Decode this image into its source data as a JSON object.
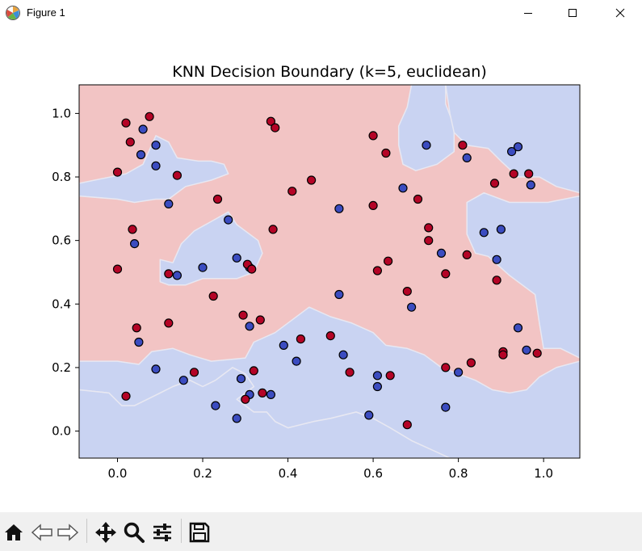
{
  "window": {
    "title": "Figure 1",
    "icons": [
      "app-figure-icon",
      "minimize-icon",
      "maximize-icon",
      "close-icon"
    ]
  },
  "toolbar": {
    "icons": [
      "home-icon",
      "back-arrow-icon",
      "forward-arrow-icon",
      "pan-move-icon",
      "zoom-magnifier-icon",
      "configure-subplots-icon",
      "save-floppy-icon"
    ]
  },
  "colors": {
    "class0_point": "#3b4cc0",
    "class1_point": "#b40426",
    "class0_region": "#c9d3f2",
    "class1_region": "#f2c4c4",
    "region_edge": "#e8e8f2"
  },
  "chart_data": {
    "type": "scatter",
    "title": "KNN Decision Boundary (k=5, euclidean)",
    "xlabel": "",
    "ylabel": "",
    "xlim": [
      -0.09,
      1.085
    ],
    "ylim": [
      -0.085,
      1.09
    ],
    "xticks": [
      "0.0",
      "0.2",
      "0.4",
      "0.6",
      "0.8",
      "1.0"
    ],
    "yticks": [
      "0.0",
      "0.2",
      "0.4",
      "0.6",
      "0.8",
      "1.0"
    ],
    "grid": false,
    "legend": "none",
    "decision_regions": {
      "background_class": 1,
      "class0_polygons": [
        [
          [
            -0.09,
            0.78
          ],
          [
            0.02,
            0.81
          ],
          [
            0.06,
            0.84
          ],
          [
            0.09,
            0.93
          ],
          [
            0.12,
            0.91
          ],
          [
            0.14,
            0.86
          ],
          [
            0.19,
            0.85
          ],
          [
            0.22,
            0.85
          ],
          [
            0.25,
            0.84
          ],
          [
            0.26,
            0.81
          ],
          [
            0.22,
            0.79
          ],
          [
            0.16,
            0.77
          ],
          [
            0.12,
            0.73
          ],
          [
            0.09,
            0.73
          ],
          [
            0.04,
            0.72
          ],
          [
            0.0,
            0.73
          ],
          [
            -0.09,
            0.74
          ]
        ],
        [
          [
            0.1,
            0.54
          ],
          [
            0.13,
            0.53
          ],
          [
            0.15,
            0.59
          ],
          [
            0.18,
            0.63
          ],
          [
            0.22,
            0.66
          ],
          [
            0.26,
            0.69
          ],
          [
            0.28,
            0.65
          ],
          [
            0.33,
            0.6
          ],
          [
            0.34,
            0.56
          ],
          [
            0.33,
            0.53
          ],
          [
            0.32,
            0.5
          ],
          [
            0.28,
            0.48
          ],
          [
            0.24,
            0.48
          ],
          [
            0.2,
            0.48
          ],
          [
            0.16,
            0.46
          ],
          [
            0.12,
            0.46
          ],
          [
            0.1,
            0.47
          ]
        ],
        [
          [
            0.69,
            1.09
          ],
          [
            0.77,
            1.09
          ],
          [
            0.77,
            1.03
          ],
          [
            0.79,
            0.96
          ],
          [
            0.79,
            0.88
          ],
          [
            0.75,
            0.84
          ],
          [
            0.7,
            0.82
          ],
          [
            0.67,
            0.84
          ],
          [
            0.66,
            0.9
          ],
          [
            0.66,
            0.96
          ],
          [
            0.68,
            1.02
          ]
        ],
        [
          [
            0.77,
            1.09
          ],
          [
            1.085,
            1.09
          ],
          [
            1.085,
            0.75
          ],
          [
            1.03,
            0.77
          ],
          [
            0.99,
            0.8
          ],
          [
            0.94,
            0.8
          ],
          [
            0.9,
            0.85
          ],
          [
            0.87,
            0.89
          ],
          [
            0.82,
            0.9
          ],
          [
            0.79,
            0.94
          ],
          [
            0.78,
            1.0
          ]
        ],
        [
          [
            0.82,
            0.72
          ],
          [
            0.86,
            0.75
          ],
          [
            0.92,
            0.72
          ],
          [
            0.97,
            0.72
          ],
          [
            1.01,
            0.72
          ],
          [
            1.085,
            0.74
          ],
          [
            1.085,
            0.23
          ],
          [
            1.04,
            0.26
          ],
          [
            1.0,
            0.26
          ],
          [
            0.99,
            0.34
          ],
          [
            0.98,
            0.43
          ],
          [
            0.92,
            0.49
          ],
          [
            0.87,
            0.55
          ],
          [
            0.84,
            0.56
          ],
          [
            0.82,
            0.62
          ]
        ],
        [
          [
            -0.09,
            0.22
          ],
          [
            0.0,
            0.22
          ],
          [
            0.05,
            0.21
          ],
          [
            0.08,
            0.25
          ],
          [
            0.13,
            0.26
          ],
          [
            0.17,
            0.24
          ],
          [
            0.22,
            0.22
          ],
          [
            0.3,
            0.23
          ],
          [
            0.32,
            0.28
          ],
          [
            0.37,
            0.31
          ],
          [
            0.45,
            0.39
          ],
          [
            0.5,
            0.36
          ],
          [
            0.55,
            0.34
          ],
          [
            0.6,
            0.31
          ],
          [
            0.63,
            0.27
          ],
          [
            0.68,
            0.26
          ],
          [
            0.72,
            0.24
          ],
          [
            0.76,
            0.2
          ],
          [
            0.8,
            0.18
          ],
          [
            0.84,
            0.16
          ],
          [
            0.88,
            0.13
          ],
          [
            0.92,
            0.12
          ],
          [
            0.96,
            0.13
          ],
          [
            0.99,
            0.17
          ],
          [
            1.03,
            0.2
          ],
          [
            1.085,
            0.22
          ],
          [
            1.085,
            -0.085
          ],
          [
            0.78,
            -0.085
          ],
          [
            0.69,
            -0.03
          ],
          [
            0.64,
            0.01
          ],
          [
            0.6,
            0.04
          ],
          [
            0.56,
            0.06
          ],
          [
            0.5,
            0.04
          ],
          [
            0.46,
            0.03
          ],
          [
            0.43,
            0.02
          ],
          [
            0.4,
            0.01
          ],
          [
            0.37,
            0.03
          ],
          [
            0.35,
            0.06
          ],
          [
            0.32,
            0.06
          ],
          [
            0.3,
            0.08
          ],
          [
            0.28,
            0.1
          ],
          [
            0.32,
            0.14
          ],
          [
            0.3,
            0.18
          ],
          [
            0.27,
            0.2
          ],
          [
            0.23,
            0.16
          ],
          [
            0.2,
            0.14
          ],
          [
            0.17,
            0.16
          ],
          [
            0.13,
            0.14
          ],
          [
            0.1,
            0.12
          ],
          [
            0.07,
            0.1
          ],
          [
            0.04,
            0.08
          ],
          [
            0.01,
            0.08
          ],
          [
            -0.02,
            0.12
          ],
          [
            -0.09,
            0.13
          ]
        ],
        [
          [
            -0.09,
            0.13
          ],
          [
            -0.02,
            0.12
          ],
          [
            0.01,
            0.08
          ],
          [
            0.04,
            0.08
          ],
          [
            0.07,
            0.1
          ],
          [
            0.1,
            0.12
          ],
          [
            0.13,
            0.14
          ],
          [
            0.17,
            0.16
          ],
          [
            0.2,
            0.14
          ],
          [
            0.23,
            0.16
          ],
          [
            0.27,
            0.2
          ],
          [
            0.3,
            0.18
          ],
          [
            0.32,
            0.14
          ],
          [
            0.28,
            0.1
          ],
          [
            0.3,
            0.08
          ],
          [
            0.32,
            0.06
          ],
          [
            0.35,
            0.06
          ],
          [
            0.37,
            0.03
          ],
          [
            0.4,
            0.01
          ],
          [
            0.43,
            0.02
          ],
          [
            0.46,
            0.03
          ],
          [
            0.5,
            0.04
          ],
          [
            0.56,
            0.06
          ],
          [
            0.6,
            0.04
          ],
          [
            0.64,
            0.01
          ],
          [
            0.69,
            -0.03
          ],
          [
            0.78,
            -0.085
          ],
          [
            -0.09,
            -0.085
          ]
        ]
      ]
    },
    "series": [
      {
        "class": 0,
        "x": [
          0.06,
          0.055,
          0.09,
          0.09,
          0.12,
          0.04,
          0.14,
          0.2,
          0.26,
          0.28,
          0.31,
          0.31,
          0.36,
          0.39,
          0.42,
          0.52,
          0.52,
          0.53,
          0.59,
          0.61,
          0.61,
          0.67,
          0.69,
          0.725,
          0.76,
          0.8,
          0.82,
          0.86,
          0.89,
          0.9,
          0.925,
          0.94,
          0.96,
          0.97,
          0.94,
          0.77,
          0.05,
          0.09,
          0.155,
          0.23,
          0.29,
          0.28,
          0.31
        ],
        "y": [
          0.95,
          0.87,
          0.9,
          0.835,
          0.715,
          0.59,
          0.49,
          0.515,
          0.665,
          0.545,
          0.33,
          0.115,
          0.115,
          0.27,
          0.22,
          0.43,
          0.7,
          0.24,
          0.05,
          0.175,
          0.14,
          0.765,
          0.39,
          0.9,
          0.56,
          0.185,
          0.86,
          0.625,
          0.54,
          0.635,
          0.88,
          0.895,
          0.255,
          0.775,
          0.325,
          0.075,
          0.28,
          0.195,
          0.16,
          0.08,
          0.165,
          0.04,
          0.515
        ]
      },
      {
        "class": 1,
        "x": [
          0.02,
          0.075,
          0.03,
          0.0,
          0.14,
          0.035,
          0.0,
          0.12,
          0.045,
          0.12,
          0.18,
          0.02,
          0.235,
          0.225,
          0.295,
          0.3,
          0.305,
          0.315,
          0.32,
          0.34,
          0.335,
          0.36,
          0.37,
          0.365,
          0.43,
          0.41,
          0.455,
          0.5,
          0.545,
          0.6,
          0.6,
          0.61,
          0.63,
          0.635,
          0.64,
          0.68,
          0.68,
          0.705,
          0.73,
          0.73,
          0.77,
          0.77,
          0.81,
          0.82,
          0.83,
          0.885,
          0.89,
          0.905,
          0.905,
          0.93,
          0.965,
          0.985
        ],
        "y": [
          0.97,
          0.99,
          0.91,
          0.815,
          0.805,
          0.635,
          0.51,
          0.495,
          0.325,
          0.34,
          0.185,
          0.11,
          0.73,
          0.425,
          0.365,
          0.1,
          0.525,
          0.51,
          0.19,
          0.12,
          0.35,
          0.975,
          0.955,
          0.635,
          0.29,
          0.755,
          0.79,
          0.3,
          0.185,
          0.93,
          0.71,
          0.505,
          0.875,
          0.535,
          0.175,
          0.02,
          0.44,
          0.73,
          0.64,
          0.6,
          0.495,
          0.2,
          0.9,
          0.555,
          0.215,
          0.78,
          0.475,
          0.25,
          0.24,
          0.81,
          0.81,
          0.245
        ]
      }
    ]
  }
}
